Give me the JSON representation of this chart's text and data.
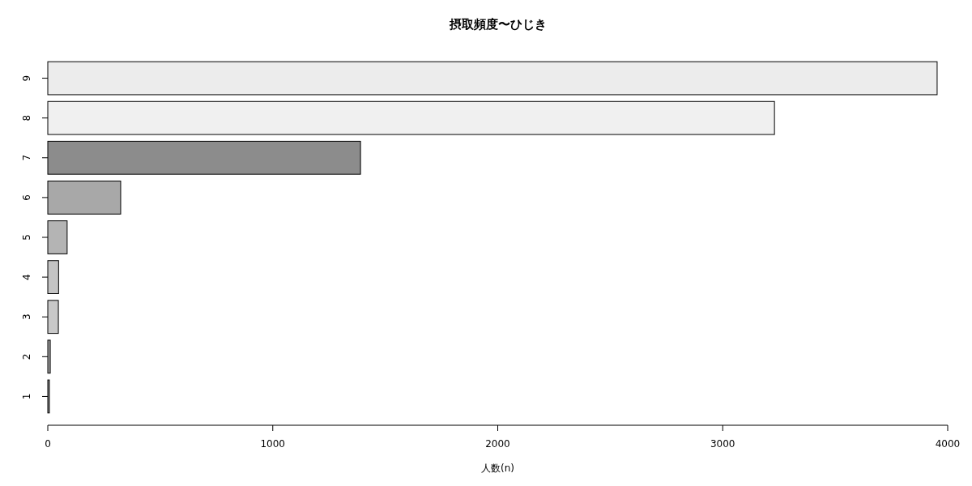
{
  "chart_data": {
    "type": "bar",
    "orientation": "horizontal",
    "title": "摂取頻度〜ひじき",
    "xlabel": "人数(n)",
    "categories": [
      "9",
      "8",
      "7",
      "6",
      "5",
      "4",
      "3",
      "2",
      "1"
    ],
    "values": [
      3953,
      3230,
      1390,
      324,
      86,
      48,
      47,
      11,
      7
    ],
    "colors": [
      "#ececec",
      "#f0f0f0",
      "#8c8c8c",
      "#a8a8a8",
      "#b4b4b4",
      "#c4c4c4",
      "#c8c8c8",
      "#a0a0a0",
      "#909090"
    ],
    "xlim": [
      0,
      4000
    ],
    "xticks": [
      0,
      1000,
      2000,
      3000,
      4000
    ],
    "grid": false
  }
}
